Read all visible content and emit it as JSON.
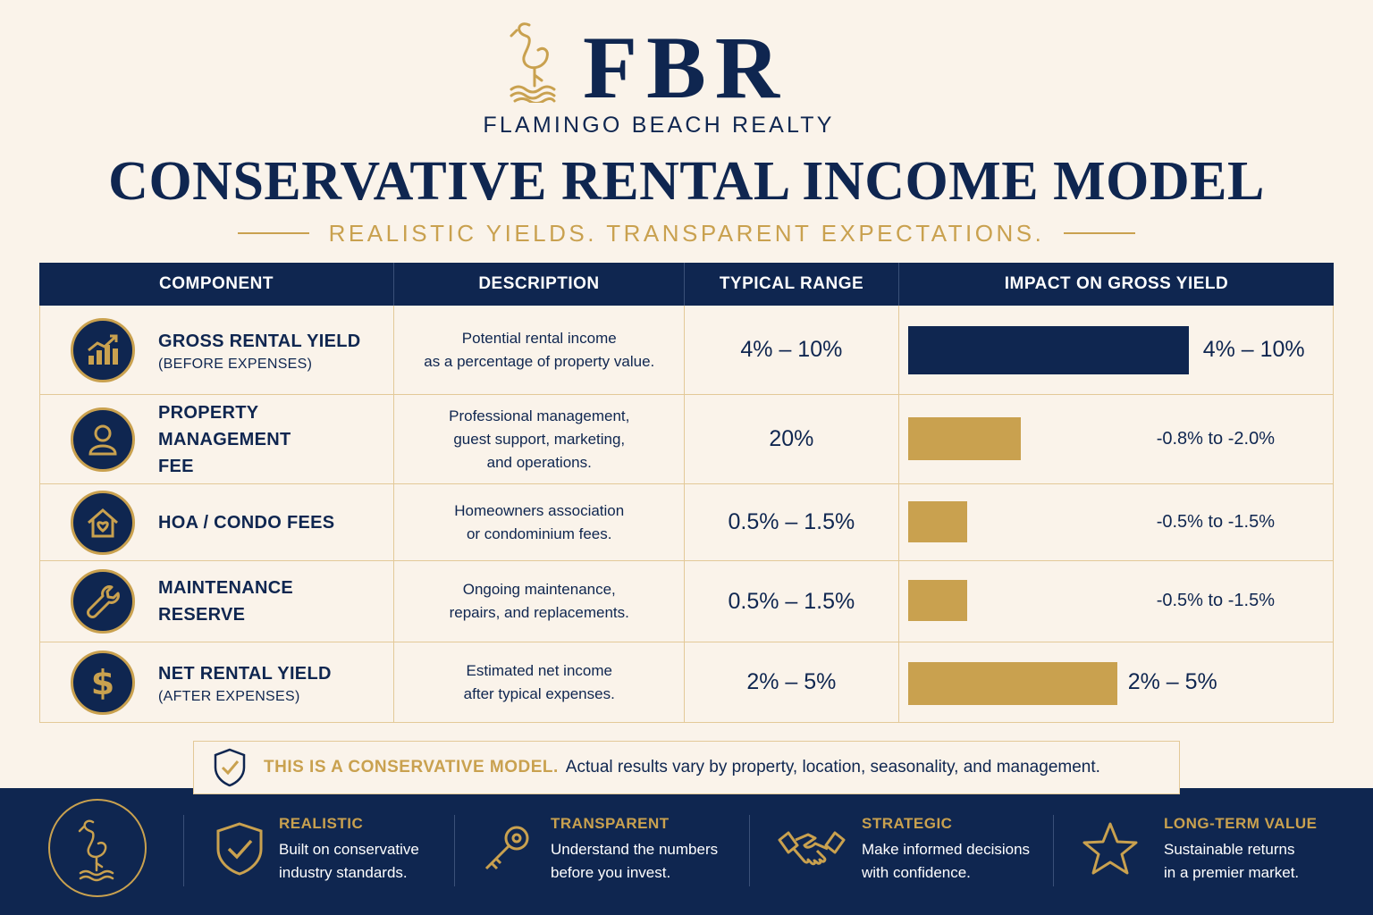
{
  "brand": {
    "logo_letters": "FBR",
    "name": "FLAMINGO BEACH REALTY"
  },
  "title": "CONSERVATIVE RENTAL INCOME MODEL",
  "subtitle": "REALISTIC YIELDS. TRANSPARENT EXPECTATIONS.",
  "table": {
    "headers": [
      "COMPONENT",
      "DESCRIPTION",
      "TYPICAL RANGE",
      "IMPACT ON GROSS YIELD"
    ],
    "rows": [
      {
        "icon": "chart-growth-icon",
        "name": "GROSS RENTAL YIELD",
        "sub": "(BEFORE EXPENSES)",
        "desc1": "Potential rental income",
        "desc2": "as a percentage of property value.",
        "desc3": "",
        "range": "4% – 10%",
        "impact": "4% – 10%",
        "bar_fraction": 0.67,
        "bar_color": "#0f2650"
      },
      {
        "icon": "person-icon",
        "name": "PROPERTY MANAGEMENT",
        "sub": "FEE",
        "desc1": "Professional management,",
        "desc2": "guest support, marketing,",
        "desc3": "and operations.",
        "range": "20%",
        "impact": "-0.8% to -2.0%",
        "bar_fraction": 0.27,
        "bar_color": "#c9a14f"
      },
      {
        "icon": "house-heart-icon",
        "name": "HOA / CONDO FEES",
        "sub": "",
        "desc1": "Homeowners association",
        "desc2": "or condominium fees.",
        "desc3": "",
        "range": "0.5% – 1.5%",
        "impact": "-0.5% to -1.5%",
        "bar_fraction": 0.14,
        "bar_color": "#c9a14f"
      },
      {
        "icon": "wrench-icon",
        "name": "MAINTENANCE",
        "sub": "RESERVE",
        "desc1": "Ongoing maintenance,",
        "desc2": "repairs, and replacements.",
        "desc3": "",
        "range": "0.5% – 1.5%",
        "impact": "-0.5% to -1.5%",
        "bar_fraction": 0.14,
        "bar_color": "#c9a14f"
      },
      {
        "icon": "dollar-icon",
        "name": "NET RENTAL YIELD",
        "sub": "(AFTER EXPENSES)",
        "desc1": "Estimated net income",
        "desc2": "after typical expenses.",
        "desc3": "",
        "range": "2% – 5%",
        "impact": "2% – 5%",
        "bar_fraction": 0.5,
        "bar_color": "#c9a14f"
      }
    ]
  },
  "note": {
    "strong": "THIS IS A CONSERVATIVE MODEL.",
    "text": "Actual results vary by property, location, seasonality, and management."
  },
  "footer": {
    "items": [
      {
        "icon": "shield-check-icon",
        "title": "REALISTIC",
        "line1": "Built on conservative",
        "line2": "industry standards."
      },
      {
        "icon": "key-icon",
        "title": "TRANSPARENT",
        "line1": "Understand the numbers",
        "line2": "before you invest."
      },
      {
        "icon": "handshake-icon",
        "title": "STRATEGIC",
        "line1": "Make informed decisions",
        "line2": "with confidence."
      },
      {
        "icon": "star-icon",
        "title": "LONG-TERM VALUE",
        "line1": "Sustainable returns",
        "line2": "in a premier market."
      }
    ]
  },
  "colors": {
    "navy": "#0f2650",
    "gold": "#c9a14f",
    "background": "#faf3ea"
  }
}
